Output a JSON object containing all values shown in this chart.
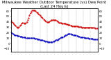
{
  "title": "Milwaukee Weather Outdoor Temperature (vs) Dew Point (Last 24 Hours)",
  "title_fontsize": 3.8,
  "background_color": "#ffffff",
  "plot_bg_color": "#ffffff",
  "temp_color": "#cc0000",
  "dew_color": "#0000bb",
  "grid_color": "#aaaaaa",
  "ylim": [
    -15,
    65
  ],
  "n_points": 100,
  "temp_values": [
    42,
    40,
    38,
    36,
    34,
    33,
    31,
    30,
    30,
    31,
    33,
    35,
    37,
    38,
    38,
    37,
    37,
    38,
    40,
    43,
    47,
    52,
    56,
    59,
    61,
    62,
    62,
    61,
    60,
    58,
    57,
    55,
    54,
    52,
    50,
    48,
    47,
    45,
    44,
    42,
    41,
    40,
    40,
    40,
    41,
    42,
    43,
    44,
    44,
    44,
    44,
    43,
    42,
    41,
    40,
    39,
    38,
    38,
    37,
    37,
    37,
    37,
    37,
    36,
    36,
    35,
    34,
    34,
    33,
    33,
    32,
    32,
    32,
    32,
    32,
    32,
    32,
    31,
    31,
    31,
    31,
    30,
    30,
    30,
    30,
    30,
    30,
    30,
    30,
    30,
    30,
    30,
    29,
    29,
    29,
    29,
    28,
    28,
    28,
    28
  ],
  "dew_values": [
    20,
    19,
    18,
    17,
    16,
    15,
    15,
    14,
    14,
    14,
    13,
    13,
    13,
    12,
    12,
    11,
    11,
    10,
    10,
    10,
    10,
    10,
    10,
    10,
    10,
    10,
    10,
    9,
    9,
    9,
    8,
    8,
    8,
    7,
    7,
    6,
    6,
    5,
    5,
    4,
    4,
    4,
    3,
    3,
    3,
    3,
    3,
    3,
    4,
    4,
    5,
    6,
    7,
    7,
    8,
    9,
    10,
    11,
    12,
    12,
    13,
    14,
    15,
    16,
    17,
    18,
    18,
    18,
    18,
    17,
    17,
    16,
    16,
    15,
    15,
    14,
    14,
    13,
    13,
    12,
    12,
    11,
    11,
    11,
    10,
    10,
    10,
    10,
    10,
    9,
    9,
    9,
    9,
    9,
    8,
    8,
    8,
    8,
    8,
    8
  ],
  "yticks": [
    -10,
    0,
    10,
    20,
    30,
    40,
    50,
    60
  ],
  "vgrid_count": 13,
  "right_ticks": [
    60,
    50,
    40,
    30,
    20,
    10,
    0,
    -10
  ]
}
